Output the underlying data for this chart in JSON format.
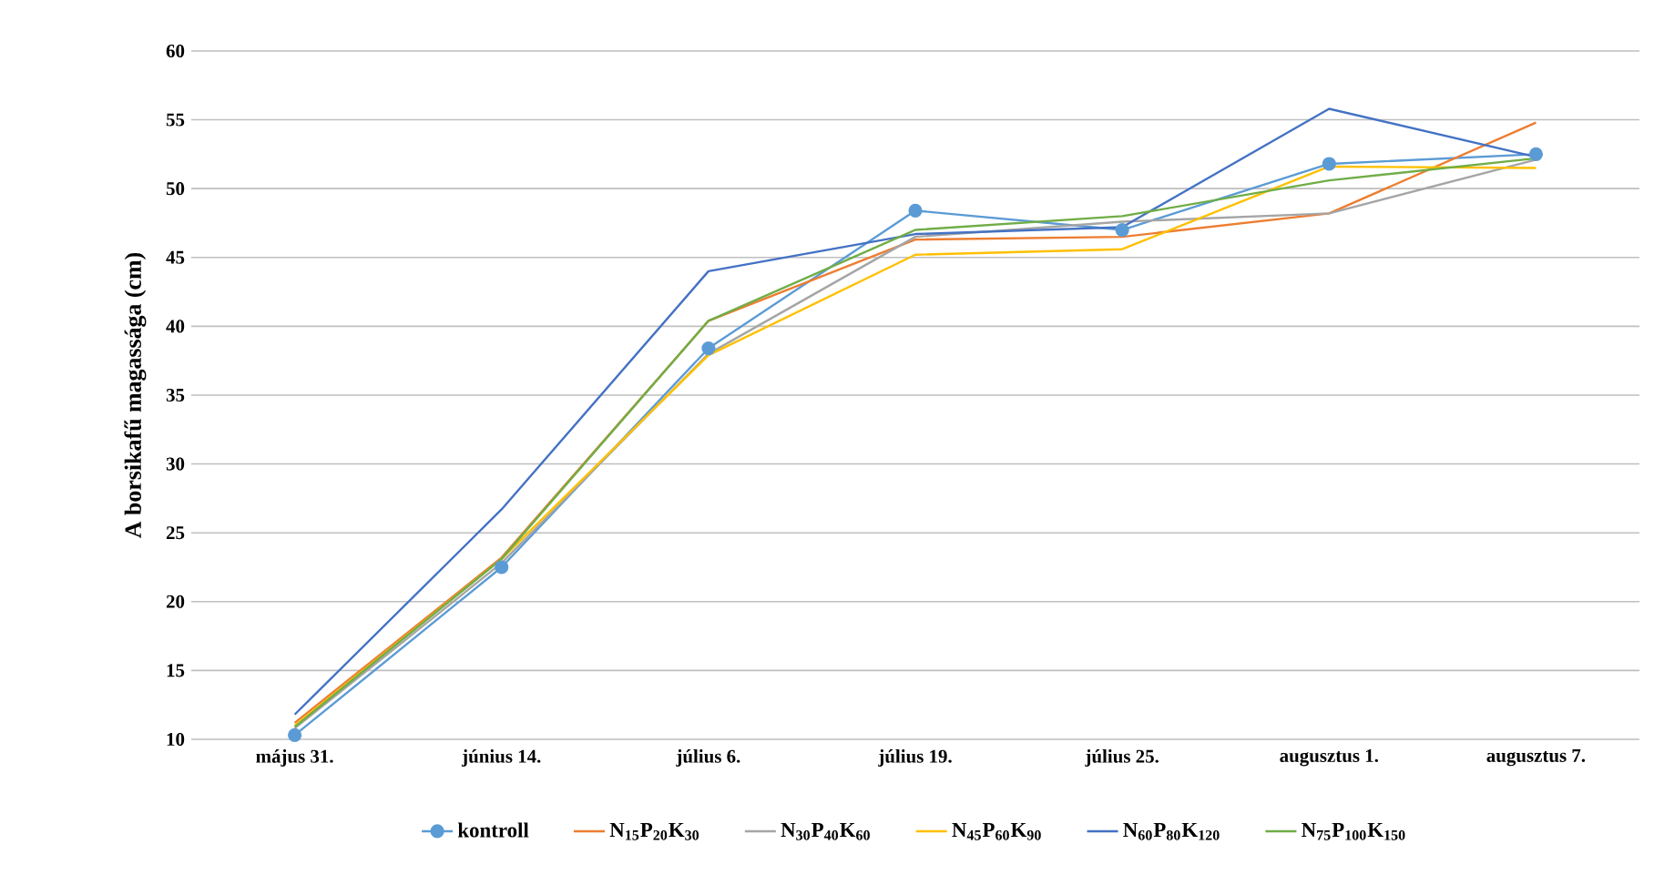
{
  "chart_data": {
    "type": "line",
    "ylabel": "A borsikafű magassága (cm)",
    "categories": [
      "május 31.",
      "június 14.",
      "július 6.",
      "július 19.",
      "július 25.",
      "augusztus 1.",
      "augusztus 7."
    ],
    "series": [
      {
        "name": "kontroll",
        "color": "#5b9bd5",
        "marker": "circle",
        "values": [
          10.3,
          22.5,
          38.4,
          48.4,
          47.0,
          51.8,
          52.5
        ]
      },
      {
        "name": "N$_{15}$P$_{20}$K$_{30}$",
        "color": "#ed7d31",
        "marker": "none",
        "values": [
          11.2,
          23.2,
          40.4,
          46.3,
          46.5,
          48.2,
          54.8
        ]
      },
      {
        "name": "N$_{30}$P$_{40}$K$_{60}$",
        "color": "#a5a5a5",
        "marker": "none",
        "values": [
          10.8,
          22.8,
          38.0,
          46.5,
          47.6,
          48.2,
          52.1
        ]
      },
      {
        "name": "N$_{45}$P$_{60}$K$_{90}$",
        "color": "#ffc000",
        "marker": "none",
        "values": [
          11.0,
          23.1,
          37.9,
          45.2,
          45.6,
          51.6,
          51.5
        ]
      },
      {
        "name": "N$_{60}$P$_{80}$K$_{120}$",
        "color": "#4472c4",
        "marker": "none",
        "values": [
          11.8,
          26.7,
          44.0,
          46.7,
          47.2,
          55.8,
          52.3
        ]
      },
      {
        "name": "N$_{75}$P$_{100}$K$_{150}$",
        "color": "#70ad47",
        "marker": "none",
        "values": [
          10.9,
          23.1,
          40.4,
          47.0,
          48.0,
          50.6,
          52.2
        ]
      }
    ],
    "ylim": [
      10,
      60
    ],
    "yticks": [
      10,
      15,
      20,
      25,
      30,
      35,
      40,
      45,
      50,
      55,
      60
    ],
    "grid": "y",
    "legend": "bottom",
    "line_style": "solid"
  }
}
